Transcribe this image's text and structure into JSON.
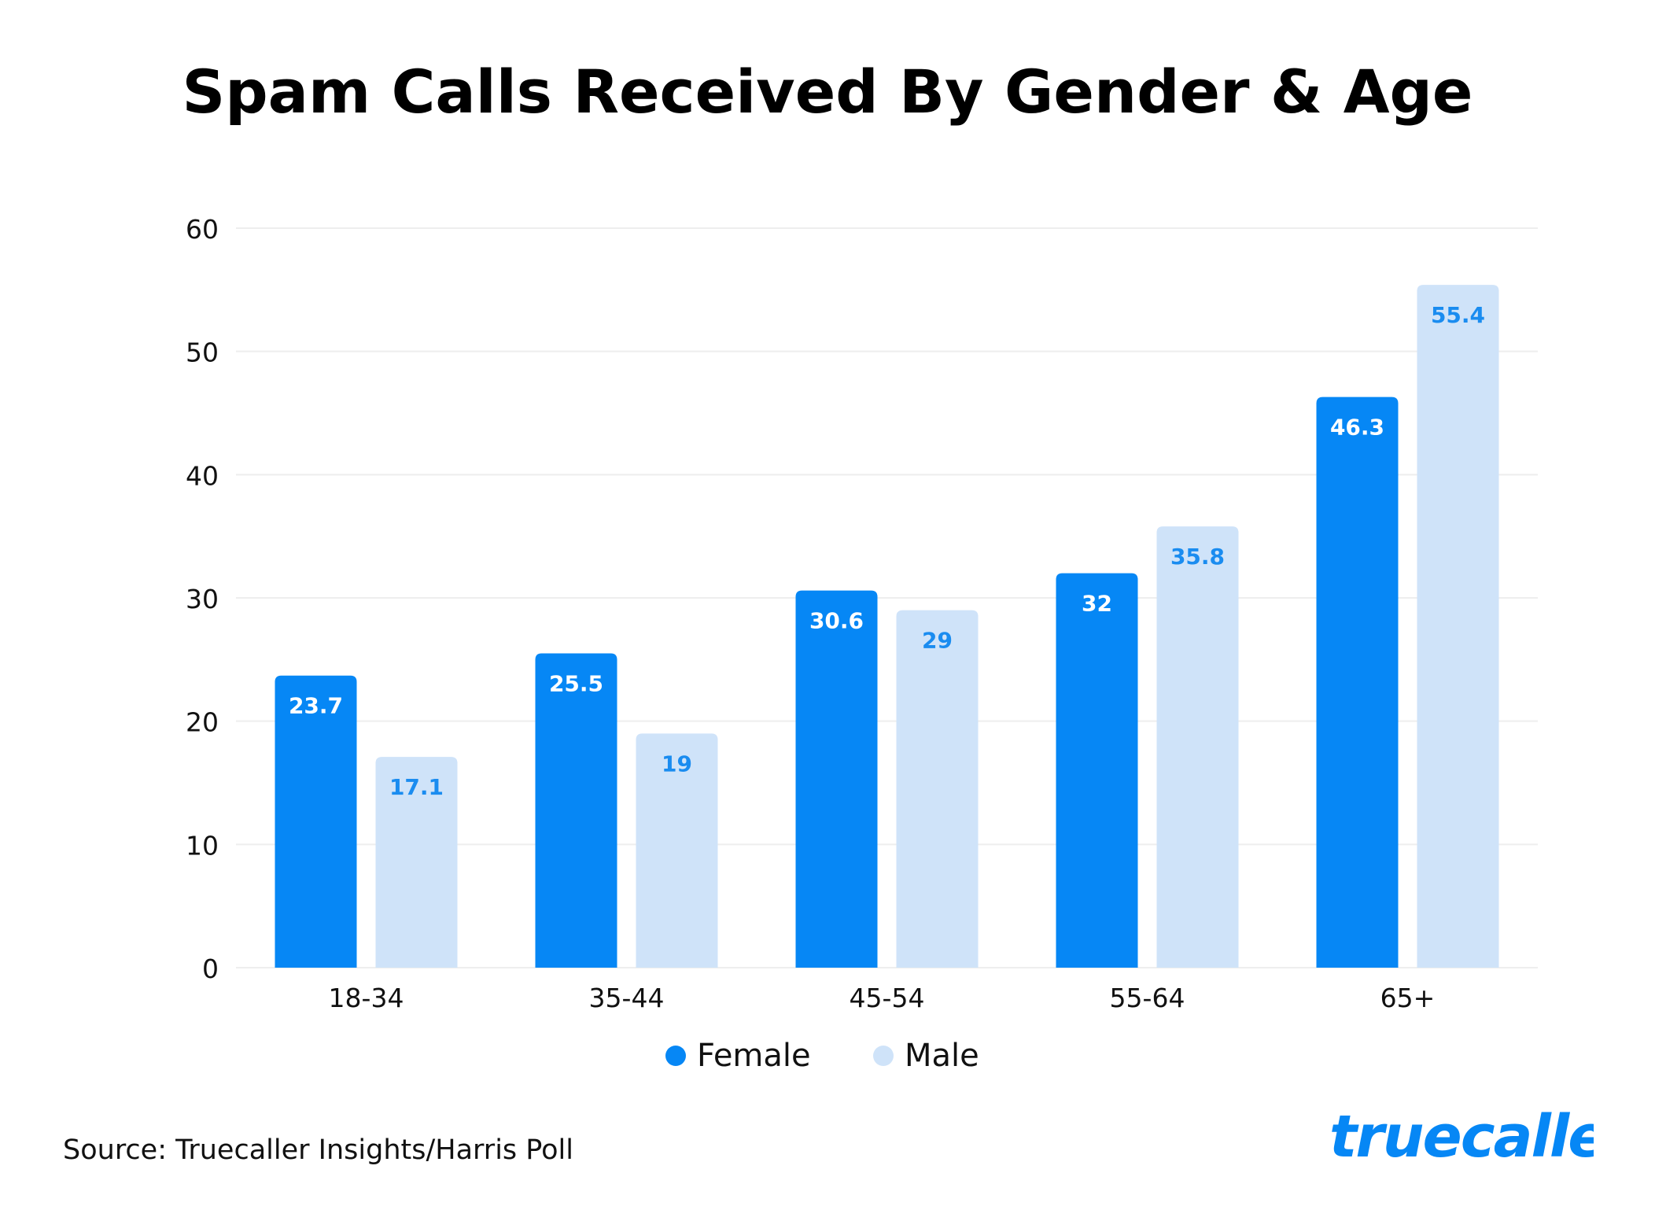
{
  "chart_data": {
    "type": "bar",
    "title": "Spam Calls Received By Gender & Age",
    "categories": [
      "18-34",
      "35-44",
      "45-54",
      "55-64",
      "65+"
    ],
    "series": [
      {
        "name": "Female",
        "values": [
          23.7,
          25.5,
          30.6,
          32,
          46.3
        ],
        "color": "#0687F5"
      },
      {
        "name": "Male",
        "values": [
          17.1,
          19,
          29,
          35.8,
          55.4
        ],
        "color": "#CFE3F9"
      }
    ],
    "yticks": [
      0,
      10,
      20,
      30,
      40,
      50,
      60
    ],
    "ylim": [
      0,
      60
    ],
    "grid": true,
    "legend_position": "bottom-center",
    "data_labels": true
  },
  "source": "Source: Truecaller Insights/Harris Poll",
  "logo": {
    "text": "truecaller",
    "color": "#0687F5"
  },
  "colors": {
    "female_label": "#FFFFFF",
    "male_label": "#1A8CF0",
    "grid": "#EEEEEE"
  }
}
